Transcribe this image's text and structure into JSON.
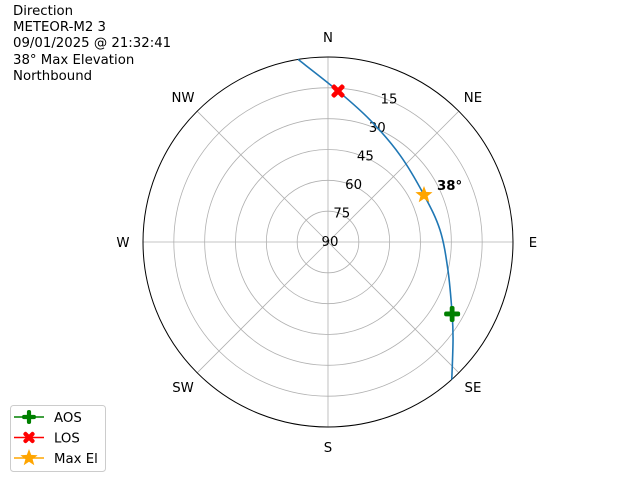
{
  "title_lines": [
    "Direction",
    "METEOR-M2 3",
    "09/01/2025 @ 21:32:41",
    "38° Max Elevation",
    "Northbound"
  ],
  "chart_data": {
    "type": "polar-line",
    "theta_zero": "N",
    "theta_direction": "clockwise",
    "radial_axis": "elevation (90 at center, 0 at edge)",
    "rlim": [
      90,
      0
    ],
    "grid": true,
    "direction_labels": [
      {
        "label": "N",
        "az": 0
      },
      {
        "label": "NE",
        "az": 45
      },
      {
        "label": "E",
        "az": 90
      },
      {
        "label": "SE",
        "az": 135
      },
      {
        "label": "S",
        "az": 180
      },
      {
        "label": "SW",
        "az": 225
      },
      {
        "label": "W",
        "az": 270
      },
      {
        "label": "NW",
        "az": 315
      }
    ],
    "radial_ticks": [
      "15",
      "30",
      "45",
      "60",
      "75",
      "90"
    ],
    "track": {
      "color": "#1f77b4",
      "az": [
        138.0,
        128.1,
        120.1,
        103.1,
        83.9,
        63.9,
        39.6,
        19.0,
        3.8,
        -9.3
      ],
      "el": [
        0.0,
        12.7,
        20.2,
        30.1,
        35.2,
        38.0,
        35.1,
        27.2,
        16.4,
        0.0
      ]
    },
    "markers": [
      {
        "name": "AOS",
        "az": 120.1,
        "el": 20.2,
        "color": "#008000",
        "shape": "plus"
      },
      {
        "name": "LOS",
        "az": 3.8,
        "el": 16.4,
        "color": "#ff0000",
        "shape": "x"
      },
      {
        "name": "Max El",
        "az": 63.9,
        "el": 38.0,
        "color": "#ffa500",
        "shape": "star"
      }
    ],
    "annotation": {
      "text": "38°",
      "az": 63.9,
      "el": 38.0
    },
    "legend": {
      "placement": "lower-left",
      "entries": [
        "AOS",
        "LOS",
        "Max El"
      ]
    }
  }
}
